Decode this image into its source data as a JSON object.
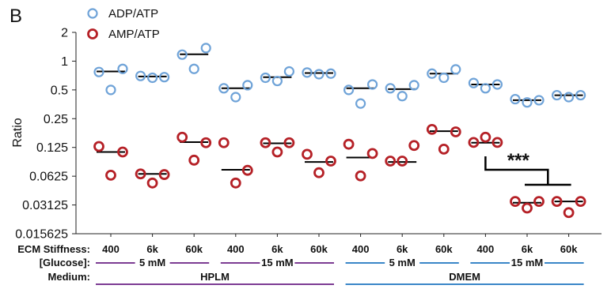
{
  "panel_label": "B",
  "colors": {
    "adp": "#6fa3d8",
    "amp": "#b52026",
    "hplm": "#7c3c93",
    "dmem": "#3a86c8"
  },
  "chart_data": {
    "type": "scatter",
    "ylabel": "Ratio",
    "yscale": "log2",
    "ylim": [
      0.015625,
      2
    ],
    "yticks": [
      "2",
      "1",
      "0.5",
      "0.25",
      "0.125",
      "0.0625",
      "0.03125",
      "0.015625"
    ],
    "yticks_values": [
      2,
      1,
      0.5,
      0.25,
      0.125,
      0.0625,
      0.03125,
      0.015625
    ],
    "categories": [
      "400",
      "6k",
      "60k",
      "400",
      "6k",
      "60k",
      "400",
      "6k",
      "60k",
      "400",
      "6k",
      "60k"
    ],
    "row_labels": {
      "stiffness": "ECM Stiffness:",
      "glucose": "[Glucose]:",
      "medium": "Medium:"
    },
    "glucose_groups": [
      {
        "label": "5 mM",
        "medium": "hplm"
      },
      {
        "label": "15 mM",
        "medium": "hplm"
      },
      {
        "label": "5 mM",
        "medium": "dmem"
      },
      {
        "label": "15 mM",
        "medium": "dmem"
      }
    ],
    "media": [
      "HPLM",
      "DMEM"
    ],
    "legend": [
      "ADP/ATP",
      "AMP/ATP"
    ],
    "series": [
      {
        "name": "ADP/ATP",
        "points": [
          [
            0.77,
            0.5,
            0.83
          ],
          [
            0.7,
            0.67,
            0.68
          ],
          [
            1.17,
            0.83,
            1.37
          ],
          [
            0.52,
            0.42,
            0.56
          ],
          [
            0.67,
            0.62,
            0.78
          ],
          [
            0.76,
            0.73,
            0.74
          ],
          [
            0.5,
            0.36,
            0.57
          ],
          [
            0.52,
            0.43,
            0.56
          ],
          [
            0.74,
            0.67,
            0.82
          ],
          [
            0.59,
            0.52,
            0.57
          ],
          [
            0.4,
            0.37,
            0.39
          ],
          [
            0.44,
            0.42,
            0.44
          ]
        ],
        "medians": [
          0.78,
          0.69,
          1.18,
          0.52,
          0.68,
          0.75,
          0.52,
          0.51,
          0.74,
          0.57,
          0.39,
          0.44
        ]
      },
      {
        "name": "AMP/ATP",
        "points": [
          [
            0.128,
            0.064,
            0.112
          ],
          [
            0.066,
            0.053,
            0.065
          ],
          [
            0.16,
            0.092,
            0.14
          ],
          [
            0.14,
            0.053,
            0.072
          ],
          [
            0.14,
            0.112,
            0.14
          ],
          [
            0.106,
            0.068,
            0.09
          ],
          [
            0.135,
            0.063,
            0.108
          ],
          [
            0.09,
            0.09,
            0.131
          ],
          [
            0.193,
            0.12,
            0.182
          ],
          [
            0.141,
            0.16,
            0.141
          ],
          [
            0.034,
            0.029,
            0.034
          ],
          [
            0.034,
            0.026,
            0.034
          ]
        ],
        "medians": [
          0.112,
          0.066,
          0.142,
          0.073,
          0.138,
          0.088,
          0.098,
          0.088,
          0.185,
          0.14,
          0.033,
          0.034
        ]
      }
    ],
    "significance": {
      "text": "***",
      "from": 9,
      "to": [
        10,
        11
      ]
    }
  }
}
